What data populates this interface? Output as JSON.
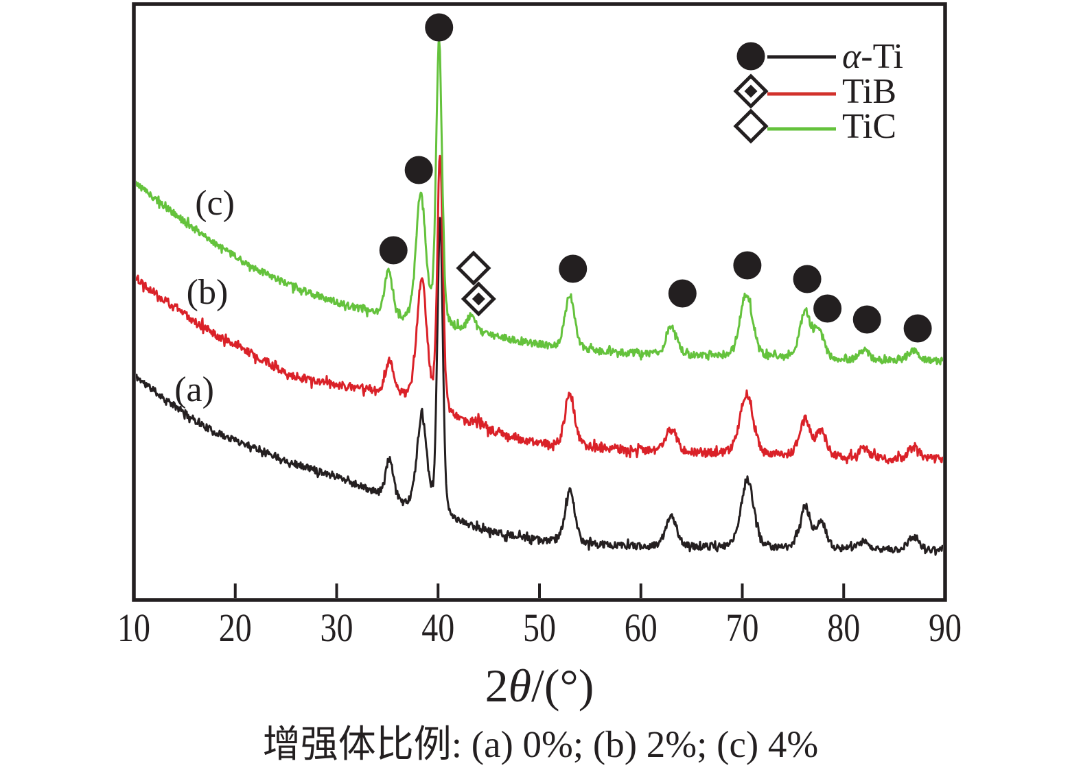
{
  "figure": {
    "caption": "增强体比例: (a) 0%; (b) 2%; (c) 4%"
  },
  "chart_data": {
    "type": "line",
    "chart_kind": "XRD diffraction patterns, stacked traces",
    "title": "",
    "xlabel": "2θ/(°)",
    "xlabel_parts": {
      "num": "2",
      "theta": "θ",
      "unit": "/(°)"
    },
    "ylabel": "",
    "xlim": [
      10,
      90
    ],
    "grid": false,
    "x_axis": {
      "ticks": [
        10,
        20,
        30,
        40,
        50,
        60,
        70,
        80,
        90
      ]
    },
    "colors": {
      "frame": "#231f20",
      "marker": "#231f20",
      "background": "#ffffff"
    },
    "legend": {
      "position": "top-right",
      "entries": [
        {
          "symbol": "filled-circle",
          "line_color": "#231f20",
          "label": "α-Ti"
        },
        {
          "symbol": "diamond-dot",
          "line_color": "#d2312c",
          "label": "TiB"
        },
        {
          "symbol": "open-diamond",
          "line_color": "#64c23c",
          "label": "TiC"
        }
      ]
    },
    "series": [
      {
        "key": "a",
        "name": "(a)",
        "reinforcement": "0%",
        "color": "#241f20",
        "seed": 11,
        "noise": 5,
        "label_anchor": {
          "two_theta": 15.96,
          "intensity": 308
        },
        "baseline": [
          [
            10,
            328
          ],
          [
            14,
            283
          ],
          [
            18,
            245
          ],
          [
            22,
            222
          ],
          [
            26,
            198
          ],
          [
            30,
            180
          ],
          [
            34,
            155
          ],
          [
            38,
            132
          ],
          [
            42,
            113
          ],
          [
            46,
            97
          ],
          [
            50,
            87
          ],
          [
            55,
            81
          ],
          [
            60,
            78
          ],
          [
            65,
            77
          ],
          [
            70,
            76
          ],
          [
            75,
            75
          ],
          [
            80,
            74
          ],
          [
            85,
            73
          ],
          [
            90,
            72
          ]
        ],
        "peaks": [
          [
            35.2,
            56,
            0.4
          ],
          [
            38.4,
            137,
            0.5
          ],
          [
            40.2,
            433,
            0.28
          ],
          [
            53.0,
            76,
            0.5
          ],
          [
            63.0,
            46,
            0.55
          ],
          [
            70.5,
            100,
            0.65
          ],
          [
            76.2,
            60,
            0.55
          ],
          [
            77.8,
            38,
            0.5
          ],
          [
            82.0,
            12,
            0.5
          ],
          [
            86.9,
            20,
            0.55
          ]
        ]
      },
      {
        "key": "b",
        "name": "(b)",
        "reinforcement": "2%",
        "color": "#da2128",
        "seed": 22,
        "noise": 6,
        "label_anchor": {
          "two_theta": 17.24,
          "intensity": 450
        },
        "baseline": [
          [
            10,
            472
          ],
          [
            14,
            427
          ],
          [
            18,
            388
          ],
          [
            22,
            356
          ],
          [
            26,
            326
          ],
          [
            30,
            313
          ],
          [
            34,
            305
          ],
          [
            38,
            291
          ],
          [
            42,
            262
          ],
          [
            46,
            243
          ],
          [
            50,
            228
          ],
          [
            55,
            222
          ],
          [
            60,
            218
          ],
          [
            65,
            215
          ],
          [
            70,
            213
          ],
          [
            75,
            211
          ],
          [
            80,
            208
          ],
          [
            85,
            206
          ],
          [
            90,
            205
          ]
        ],
        "peaks": [
          [
            35.2,
            46,
            0.4
          ],
          [
            38.4,
            178,
            0.5
          ],
          [
            40.2,
            375,
            0.28
          ],
          [
            44.0,
            10,
            0.5
          ],
          [
            53.0,
            75,
            0.5
          ],
          [
            63.0,
            34,
            0.55
          ],
          [
            70.4,
            88,
            0.65
          ],
          [
            76.2,
            53,
            0.55
          ],
          [
            77.8,
            36,
            0.5
          ],
          [
            82.0,
            14,
            0.5
          ],
          [
            86.9,
            18,
            0.55
          ]
        ]
      },
      {
        "key": "c",
        "name": "(c)",
        "reinforcement": "4%",
        "color": "#64c23c",
        "seed": 33,
        "noise": 5,
        "label_anchor": {
          "two_theta": 17.99,
          "intensity": 580
        },
        "baseline": [
          [
            10,
            610
          ],
          [
            14,
            563
          ],
          [
            18,
            520
          ],
          [
            22,
            483
          ],
          [
            26,
            455
          ],
          [
            30,
            434
          ],
          [
            34,
            417
          ],
          [
            38,
            403
          ],
          [
            42,
            395
          ],
          [
            46,
            383
          ],
          [
            50,
            372
          ],
          [
            55,
            364
          ],
          [
            60,
            359
          ],
          [
            65,
            356
          ],
          [
            70,
            354
          ],
          [
            75,
            352
          ],
          [
            80,
            350
          ],
          [
            85,
            349
          ],
          [
            90,
            348
          ]
        ],
        "peaks": [
          [
            35.1,
            66,
            0.4
          ],
          [
            38.3,
            190,
            0.5
          ],
          [
            40.1,
            415,
            0.3
          ],
          [
            43.3,
            22,
            0.4
          ],
          [
            53.0,
            78,
            0.5
          ],
          [
            63.0,
            41,
            0.55
          ],
          [
            70.4,
            93,
            0.65
          ],
          [
            76.2,
            68,
            0.55
          ],
          [
            77.6,
            41,
            0.5
          ],
          [
            82.0,
            14,
            0.5
          ],
          [
            86.9,
            16,
            0.55
          ]
        ]
      }
    ],
    "peak_markers": [
      {
        "symbol": "filled-circle",
        "phase": "α-Ti",
        "two_theta": 35.6,
        "intensity": 510
      },
      {
        "symbol": "filled-circle",
        "phase": "α-Ti",
        "two_theta": 38.1,
        "intensity": 627
      },
      {
        "symbol": "filled-circle",
        "phase": "α-Ti",
        "two_theta": 40.1,
        "intensity": 835
      },
      {
        "symbol": "filled-circle",
        "phase": "α-Ti",
        "two_theta": 53.3,
        "intensity": 483
      },
      {
        "symbol": "filled-circle",
        "phase": "α-Ti",
        "two_theta": 64.1,
        "intensity": 447
      },
      {
        "symbol": "filled-circle",
        "phase": "α-Ti",
        "two_theta": 70.5,
        "intensity": 488
      },
      {
        "symbol": "filled-circle",
        "phase": "α-Ti",
        "two_theta": 76.4,
        "intensity": 468
      },
      {
        "symbol": "filled-circle",
        "phase": "α-Ti",
        "two_theta": 78.4,
        "intensity": 425
      },
      {
        "symbol": "filled-circle",
        "phase": "α-Ti",
        "two_theta": 82.3,
        "intensity": 409
      },
      {
        "symbol": "filled-circle",
        "phase": "α-Ti",
        "two_theta": 87.3,
        "intensity": 396
      },
      {
        "symbol": "open-diamond",
        "phase": "TiC",
        "two_theta": 43.5,
        "intensity": 484
      },
      {
        "symbol": "diamond-dot",
        "phase": "TiB",
        "two_theta": 44.0,
        "intensity": 439
      }
    ]
  }
}
